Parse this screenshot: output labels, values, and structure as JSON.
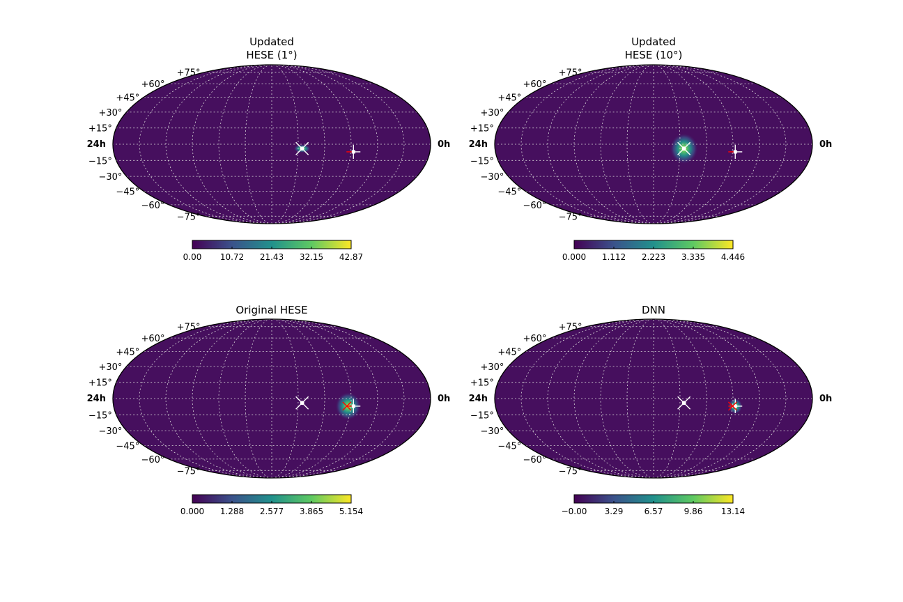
{
  "colors": {
    "background": "#460f5e",
    "grid": "#d9d9d9",
    "colormap": [
      "#440154",
      "#3b528b",
      "#21918c",
      "#5ec962",
      "#fde725"
    ],
    "marker_event": "#ffffff",
    "marker_cross": "#ff0000"
  },
  "projection": "mollweide",
  "dec_labels": [
    "+75°",
    "+60°",
    "+45°",
    "+30°",
    "+15°",
    "−15°",
    "−30°",
    "−45°",
    "−60°",
    "−75°"
  ],
  "ra_left_label": "24h",
  "ra_right_label": "0h",
  "chart_data": [
    {
      "type": "heatmap",
      "title_lines": [
        "Updated",
        "HESE (1°)"
      ],
      "colorbar_ticks": [
        "0.00",
        "10.72",
        "21.43",
        "32.15",
        "42.87"
      ],
      "zmin": 0,
      "zmax": 42.87,
      "hotspot": {
        "ra_h": 9.7,
        "dec": -4,
        "sigma_deg": 1.5,
        "elongation": 2.2,
        "peak": 42.87
      },
      "markers": [
        {
          "kind": "x",
          "ra_h": 9.7,
          "dec": -4
        },
        {
          "kind": "plus",
          "ra_h": 5.8,
          "dec": -7
        }
      ]
    },
    {
      "type": "heatmap",
      "title_lines": [
        "Updated",
        "HESE (10°)"
      ],
      "colorbar_ticks": [
        "0.000",
        "1.112",
        "2.223",
        "3.335",
        "4.446"
      ],
      "zmin": 0,
      "zmax": 4.446,
      "hotspot": {
        "ra_h": 9.7,
        "dec": -4,
        "sigma_deg": 5.5,
        "elongation": 1.0,
        "peak": 4.446
      },
      "markers": [
        {
          "kind": "x",
          "ra_h": 9.7,
          "dec": -4
        },
        {
          "kind": "plus",
          "ra_h": 5.8,
          "dec": -7
        }
      ]
    },
    {
      "type": "heatmap",
      "title_lines": [
        "Original HESE"
      ],
      "colorbar_ticks": [
        "0.000",
        "1.288",
        "2.577",
        "3.865",
        "5.154"
      ],
      "zmin": 0,
      "zmax": 5.154,
      "hotspot": {
        "ra_h": 6.2,
        "dec": -7,
        "sigma_deg": 5.0,
        "elongation": 1.0,
        "peak": 5.154
      },
      "markers": [
        {
          "kind": "x",
          "ra_h": 9.7,
          "dec": -4
        },
        {
          "kind": "plus",
          "ra_h": 5.8,
          "dec": -7
        },
        {
          "kind": "red-x",
          "ra_h": 6.3,
          "dec": -7
        }
      ]
    },
    {
      "type": "heatmap",
      "title_lines": [
        "DNN"
      ],
      "colorbar_ticks": [
        "−0.00",
        "3.29",
        "6.57",
        "9.86",
        "13.14"
      ],
      "zmin": 0,
      "zmax": 13.14,
      "hotspot": {
        "ra_h": 5.8,
        "dec": -7,
        "sigma_deg": 2.8,
        "elongation": 1.0,
        "peak": 13.14
      },
      "markers": [
        {
          "kind": "x",
          "ra_h": 9.7,
          "dec": -4
        },
        {
          "kind": "plus",
          "ra_h": 5.8,
          "dec": -7
        },
        {
          "kind": "red-x",
          "ra_h": 6.0,
          "dec": -7
        }
      ]
    }
  ]
}
